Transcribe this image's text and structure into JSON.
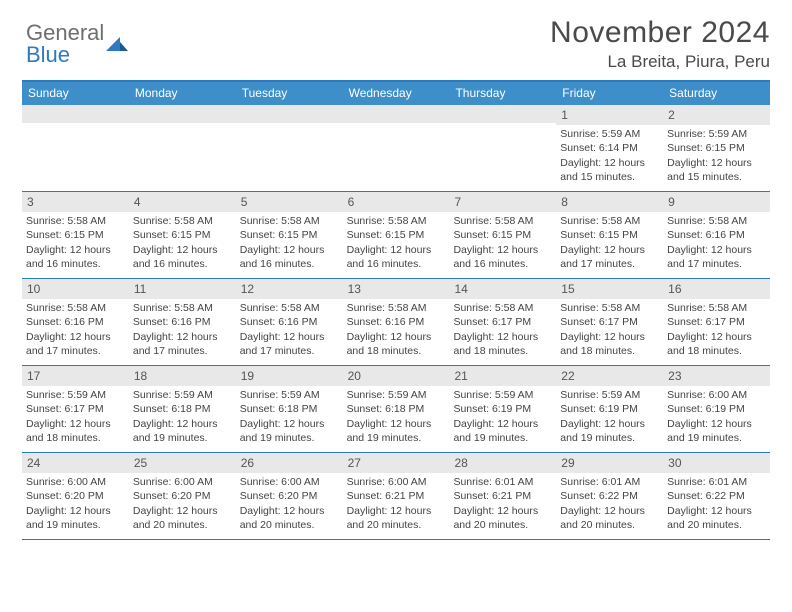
{
  "brand": {
    "line1": "General",
    "line2": "Blue",
    "color_general": "#6f6f6f",
    "color_blue": "#2c7bbf"
  },
  "title": "November 2024",
  "location": "La Breita, Piura, Peru",
  "header_bg": "#3d8ec9",
  "border_color": "#2c7bbf",
  "daynum_bg": "#e8e8e8",
  "day_headers": [
    "Sunday",
    "Monday",
    "Tuesday",
    "Wednesday",
    "Thursday",
    "Friday",
    "Saturday"
  ],
  "weeks": [
    [
      {
        "n": "",
        "sr": "",
        "ss": "",
        "dl": ""
      },
      {
        "n": "",
        "sr": "",
        "ss": "",
        "dl": ""
      },
      {
        "n": "",
        "sr": "",
        "ss": "",
        "dl": ""
      },
      {
        "n": "",
        "sr": "",
        "ss": "",
        "dl": ""
      },
      {
        "n": "",
        "sr": "",
        "ss": "",
        "dl": ""
      },
      {
        "n": "1",
        "sr": "Sunrise: 5:59 AM",
        "ss": "Sunset: 6:14 PM",
        "dl": "Daylight: 12 hours and 15 minutes."
      },
      {
        "n": "2",
        "sr": "Sunrise: 5:59 AM",
        "ss": "Sunset: 6:15 PM",
        "dl": "Daylight: 12 hours and 15 minutes."
      }
    ],
    [
      {
        "n": "3",
        "sr": "Sunrise: 5:58 AM",
        "ss": "Sunset: 6:15 PM",
        "dl": "Daylight: 12 hours and 16 minutes."
      },
      {
        "n": "4",
        "sr": "Sunrise: 5:58 AM",
        "ss": "Sunset: 6:15 PM",
        "dl": "Daylight: 12 hours and 16 minutes."
      },
      {
        "n": "5",
        "sr": "Sunrise: 5:58 AM",
        "ss": "Sunset: 6:15 PM",
        "dl": "Daylight: 12 hours and 16 minutes."
      },
      {
        "n": "6",
        "sr": "Sunrise: 5:58 AM",
        "ss": "Sunset: 6:15 PM",
        "dl": "Daylight: 12 hours and 16 minutes."
      },
      {
        "n": "7",
        "sr": "Sunrise: 5:58 AM",
        "ss": "Sunset: 6:15 PM",
        "dl": "Daylight: 12 hours and 16 minutes."
      },
      {
        "n": "8",
        "sr": "Sunrise: 5:58 AM",
        "ss": "Sunset: 6:15 PM",
        "dl": "Daylight: 12 hours and 17 minutes."
      },
      {
        "n": "9",
        "sr": "Sunrise: 5:58 AM",
        "ss": "Sunset: 6:16 PM",
        "dl": "Daylight: 12 hours and 17 minutes."
      }
    ],
    [
      {
        "n": "10",
        "sr": "Sunrise: 5:58 AM",
        "ss": "Sunset: 6:16 PM",
        "dl": "Daylight: 12 hours and 17 minutes."
      },
      {
        "n": "11",
        "sr": "Sunrise: 5:58 AM",
        "ss": "Sunset: 6:16 PM",
        "dl": "Daylight: 12 hours and 17 minutes."
      },
      {
        "n": "12",
        "sr": "Sunrise: 5:58 AM",
        "ss": "Sunset: 6:16 PM",
        "dl": "Daylight: 12 hours and 17 minutes."
      },
      {
        "n": "13",
        "sr": "Sunrise: 5:58 AM",
        "ss": "Sunset: 6:16 PM",
        "dl": "Daylight: 12 hours and 18 minutes."
      },
      {
        "n": "14",
        "sr": "Sunrise: 5:58 AM",
        "ss": "Sunset: 6:17 PM",
        "dl": "Daylight: 12 hours and 18 minutes."
      },
      {
        "n": "15",
        "sr": "Sunrise: 5:58 AM",
        "ss": "Sunset: 6:17 PM",
        "dl": "Daylight: 12 hours and 18 minutes."
      },
      {
        "n": "16",
        "sr": "Sunrise: 5:58 AM",
        "ss": "Sunset: 6:17 PM",
        "dl": "Daylight: 12 hours and 18 minutes."
      }
    ],
    [
      {
        "n": "17",
        "sr": "Sunrise: 5:59 AM",
        "ss": "Sunset: 6:17 PM",
        "dl": "Daylight: 12 hours and 18 minutes."
      },
      {
        "n": "18",
        "sr": "Sunrise: 5:59 AM",
        "ss": "Sunset: 6:18 PM",
        "dl": "Daylight: 12 hours and 19 minutes."
      },
      {
        "n": "19",
        "sr": "Sunrise: 5:59 AM",
        "ss": "Sunset: 6:18 PM",
        "dl": "Daylight: 12 hours and 19 minutes."
      },
      {
        "n": "20",
        "sr": "Sunrise: 5:59 AM",
        "ss": "Sunset: 6:18 PM",
        "dl": "Daylight: 12 hours and 19 minutes."
      },
      {
        "n": "21",
        "sr": "Sunrise: 5:59 AM",
        "ss": "Sunset: 6:19 PM",
        "dl": "Daylight: 12 hours and 19 minutes."
      },
      {
        "n": "22",
        "sr": "Sunrise: 5:59 AM",
        "ss": "Sunset: 6:19 PM",
        "dl": "Daylight: 12 hours and 19 minutes."
      },
      {
        "n": "23",
        "sr": "Sunrise: 6:00 AM",
        "ss": "Sunset: 6:19 PM",
        "dl": "Daylight: 12 hours and 19 minutes."
      }
    ],
    [
      {
        "n": "24",
        "sr": "Sunrise: 6:00 AM",
        "ss": "Sunset: 6:20 PM",
        "dl": "Daylight: 12 hours and 19 minutes."
      },
      {
        "n": "25",
        "sr": "Sunrise: 6:00 AM",
        "ss": "Sunset: 6:20 PM",
        "dl": "Daylight: 12 hours and 20 minutes."
      },
      {
        "n": "26",
        "sr": "Sunrise: 6:00 AM",
        "ss": "Sunset: 6:20 PM",
        "dl": "Daylight: 12 hours and 20 minutes."
      },
      {
        "n": "27",
        "sr": "Sunrise: 6:00 AM",
        "ss": "Sunset: 6:21 PM",
        "dl": "Daylight: 12 hours and 20 minutes."
      },
      {
        "n": "28",
        "sr": "Sunrise: 6:01 AM",
        "ss": "Sunset: 6:21 PM",
        "dl": "Daylight: 12 hours and 20 minutes."
      },
      {
        "n": "29",
        "sr": "Sunrise: 6:01 AM",
        "ss": "Sunset: 6:22 PM",
        "dl": "Daylight: 12 hours and 20 minutes."
      },
      {
        "n": "30",
        "sr": "Sunrise: 6:01 AM",
        "ss": "Sunset: 6:22 PM",
        "dl": "Daylight: 12 hours and 20 minutes."
      }
    ]
  ]
}
